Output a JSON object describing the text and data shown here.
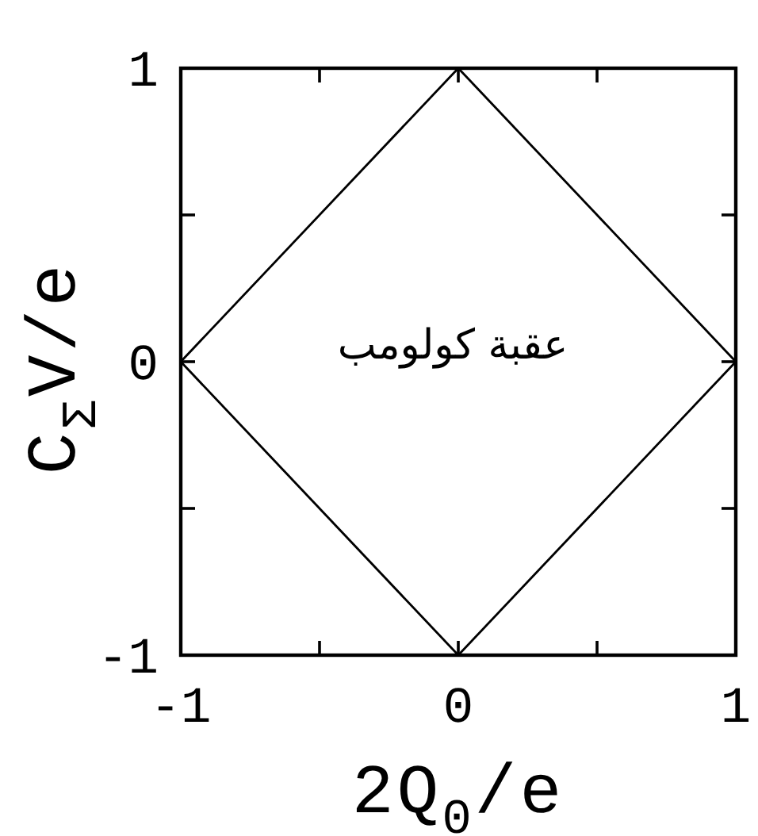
{
  "chart_data": {
    "type": "line",
    "xlabel": "2Q$_{0}$/e",
    "ylabel": "C$_{Σ}$V/e",
    "annotations": [
      "عقبة كولومب"
    ],
    "xlim": [
      -1,
      1
    ],
    "ylim": [
      -1,
      1
    ],
    "xticks": [
      -1,
      {
        "value": -0.5,
        "label": null
      },
      0,
      {
        "value": 0.5,
        "label": null
      },
      1
    ],
    "yticks": [
      -1,
      {
        "value": -0.5,
        "label": null
      },
      0,
      {
        "value": 0.5,
        "label": null
      },
      1
    ],
    "series": [
      {
        "color": "#000000",
        "x": [
          -1,
          0,
          1
        ],
        "values": [
          0,
          1,
          0
        ]
      },
      {
        "color": "#000000",
        "x": [
          -1,
          0,
          1
        ],
        "values": [
          0,
          -1,
          0
        ]
      }
    ],
    "marker": "none",
    "line_style": "solid"
  }
}
